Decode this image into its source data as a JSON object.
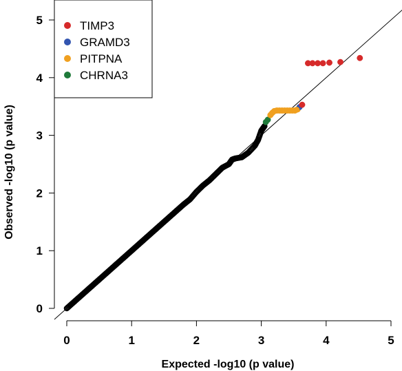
{
  "chart_data": {
    "type": "scatter",
    "title": "",
    "xlabel": "Expected -log10 (p value)",
    "ylabel": "Observed -log10 (p value)",
    "xlim": [
      -0.1,
      5.1
    ],
    "ylim": [
      -0.1,
      5.2
    ],
    "x_ticks": [
      "0",
      "1",
      "2",
      "3",
      "4",
      "5"
    ],
    "y_ticks": [
      "0",
      "1",
      "2",
      "3",
      "4",
      "5"
    ],
    "grid": false,
    "reference_line": "y = x",
    "legend_position": "top-left",
    "background_series": {
      "color": "#000000",
      "marker": "open-circle",
      "description_points": [
        [
          0.0,
          0.0
        ],
        [
          0.1,
          0.1
        ],
        [
          0.2,
          0.2
        ],
        [
          0.3,
          0.3
        ],
        [
          0.4,
          0.4
        ],
        [
          0.5,
          0.5
        ],
        [
          0.6,
          0.6
        ],
        [
          0.7,
          0.7
        ],
        [
          0.8,
          0.8
        ],
        [
          0.9,
          0.9
        ],
        [
          1.0,
          1.0
        ],
        [
          1.1,
          1.1
        ],
        [
          1.2,
          1.2
        ],
        [
          1.3,
          1.3
        ],
        [
          1.4,
          1.4
        ],
        [
          1.5,
          1.5
        ],
        [
          1.6,
          1.6
        ],
        [
          1.7,
          1.7
        ],
        [
          1.8,
          1.8
        ],
        [
          1.9,
          1.89
        ],
        [
          2.0,
          2.02
        ],
        [
          2.1,
          2.13
        ],
        [
          2.2,
          2.22
        ],
        [
          2.3,
          2.33
        ],
        [
          2.4,
          2.44
        ],
        [
          2.5,
          2.5
        ],
        [
          2.55,
          2.58
        ],
        [
          2.6,
          2.6
        ],
        [
          2.7,
          2.62
        ],
        [
          2.8,
          2.7
        ],
        [
          2.9,
          2.82
        ],
        [
          2.95,
          2.92
        ],
        [
          3.0,
          3.08
        ],
        [
          3.05,
          3.16
        ]
      ]
    },
    "series": [
      {
        "name": "TIMP3",
        "color": "#d62a2a",
        "points": [
          [
            3.63,
            3.53
          ],
          [
            3.72,
            4.25
          ],
          [
            3.79,
            4.25
          ],
          [
            3.87,
            4.25
          ],
          [
            3.95,
            4.25
          ],
          [
            4.05,
            4.26
          ],
          [
            4.22,
            4.27
          ],
          [
            4.52,
            4.34
          ]
        ]
      },
      {
        "name": "GRAMD3",
        "color": "#3355b0",
        "points": [
          [
            3.59,
            3.49
          ]
        ]
      },
      {
        "name": "PITPNA",
        "color": "#f0a020",
        "points": [
          [
            3.14,
            3.35
          ],
          [
            3.17,
            3.39
          ],
          [
            3.2,
            3.42
          ],
          [
            3.24,
            3.43
          ],
          [
            3.28,
            3.43
          ],
          [
            3.32,
            3.43
          ],
          [
            3.36,
            3.43
          ],
          [
            3.4,
            3.43
          ],
          [
            3.44,
            3.43
          ],
          [
            3.48,
            3.43
          ],
          [
            3.52,
            3.43
          ],
          [
            3.56,
            3.45
          ]
        ]
      },
      {
        "name": "CHRNA3",
        "color": "#1f7a3a",
        "points": [
          [
            3.07,
            3.23
          ],
          [
            3.1,
            3.27
          ]
        ]
      }
    ]
  }
}
